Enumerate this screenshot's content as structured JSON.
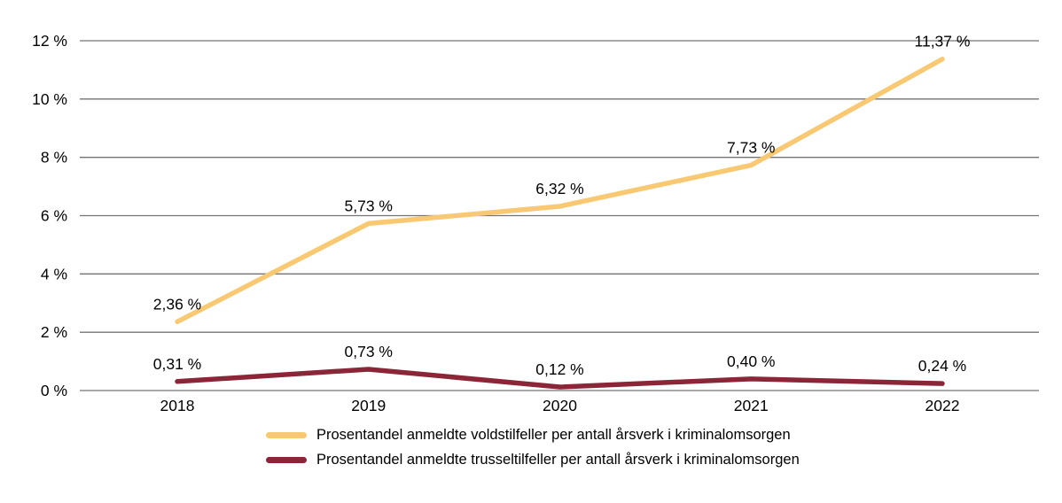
{
  "chart_data": {
    "type": "line",
    "title": "",
    "xlabel": "",
    "ylabel": "",
    "categories": [
      "2018",
      "2019",
      "2020",
      "2021",
      "2022"
    ],
    "ylim": [
      0,
      12
    ],
    "y_tick_values": [
      12,
      10,
      8,
      6,
      4,
      2,
      0
    ],
    "y_tick_labels": [
      "12 %",
      "10 %",
      "8 %",
      "6 %",
      "4 %",
      "2 %",
      "0 %"
    ],
    "grid": "horizontal",
    "legend_position": "bottom",
    "gridline_color": "#737373",
    "text_color": "#000000",
    "series": [
      {
        "name": "Prosentandel anmeldte voldstilfeller per antall årsverk i kriminalomsorgen",
        "color": "#F8C972",
        "values": [
          2.36,
          5.73,
          6.32,
          7.73,
          11.37
        ],
        "point_labels": [
          "2,36 %",
          "5,73 %",
          "6,32 %",
          "7,73 %",
          "11,37 %"
        ]
      },
      {
        "name": "Prosentandel anmeldte trusseltilfeller per antall årsverk i kriminalomsorgen",
        "color": "#8A2637",
        "values": [
          0.31,
          0.73,
          0.12,
          0.4,
          0.24
        ],
        "point_labels": [
          "0,31 %",
          "0,73 %",
          "0,12 %",
          "0,40 %",
          "0,24 %"
        ]
      }
    ]
  }
}
